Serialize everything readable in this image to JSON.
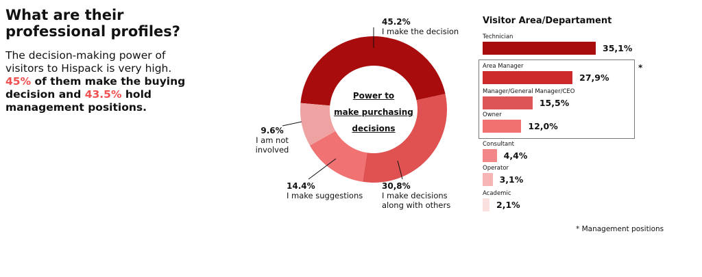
{
  "heading": "What are their professional profiles?",
  "intro": {
    "p1": "The decision-making power of visitors to Hispack is very high.",
    "h1": "45%",
    "p2": " of them make the buying decision and ",
    "h2": "43.5%",
    "p3": " hold management positions."
  },
  "chart_data": [
    {
      "type": "pie",
      "title": "Power to make purchasing decisions",
      "title_lines": [
        "Power to",
        "make purchasing",
        "decisions"
      ],
      "slices": [
        {
          "label": "I make the decision",
          "value": 45.2,
          "text": "45.2%",
          "color": "#a80c0c"
        },
        {
          "label": "I make decisions along with others",
          "value": 30.8,
          "text": "30,8%",
          "color": "#e05252",
          "lines": [
            "I make decisions",
            "along with others"
          ]
        },
        {
          "label": "I make suggestions",
          "value": 14.4,
          "text": "14.4%",
          "color": "#f07272"
        },
        {
          "label": "I am not involved",
          "value": 9.6,
          "text": "9.6%",
          "color": "#eea2a2",
          "lines": [
            "I am not",
            "involved"
          ]
        }
      ]
    },
    {
      "type": "bar",
      "title": "Visitor Area/Departament",
      "xlim": [
        0,
        35.1
      ],
      "bars": [
        {
          "label": "Technician",
          "value": 35.1,
          "text": "35,1%",
          "color": "#a80c0c"
        },
        {
          "label": "Area Manager",
          "value": 27.9,
          "text": "27,9%",
          "color": "#cc2a2a"
        },
        {
          "label": "Manager/General Manager/CEO",
          "value": 15.5,
          "text": "15,5%",
          "color": "#dd5555"
        },
        {
          "label": "Owner",
          "value": 12.0,
          "text": "12,0%",
          "color": "#f07070"
        },
        {
          "label": "Consultant",
          "value": 4.4,
          "text": "4,4%",
          "color": "#f38686"
        },
        {
          "label": "Operator",
          "value": 3.1,
          "text": "3,1%",
          "color": "#f6b4b4"
        },
        {
          "label": "Academic",
          "value": 2.1,
          "text": "2,1%",
          "color": "#fbe0e0"
        }
      ],
      "asterisk": "*",
      "footnote": "* Management positions"
    }
  ]
}
